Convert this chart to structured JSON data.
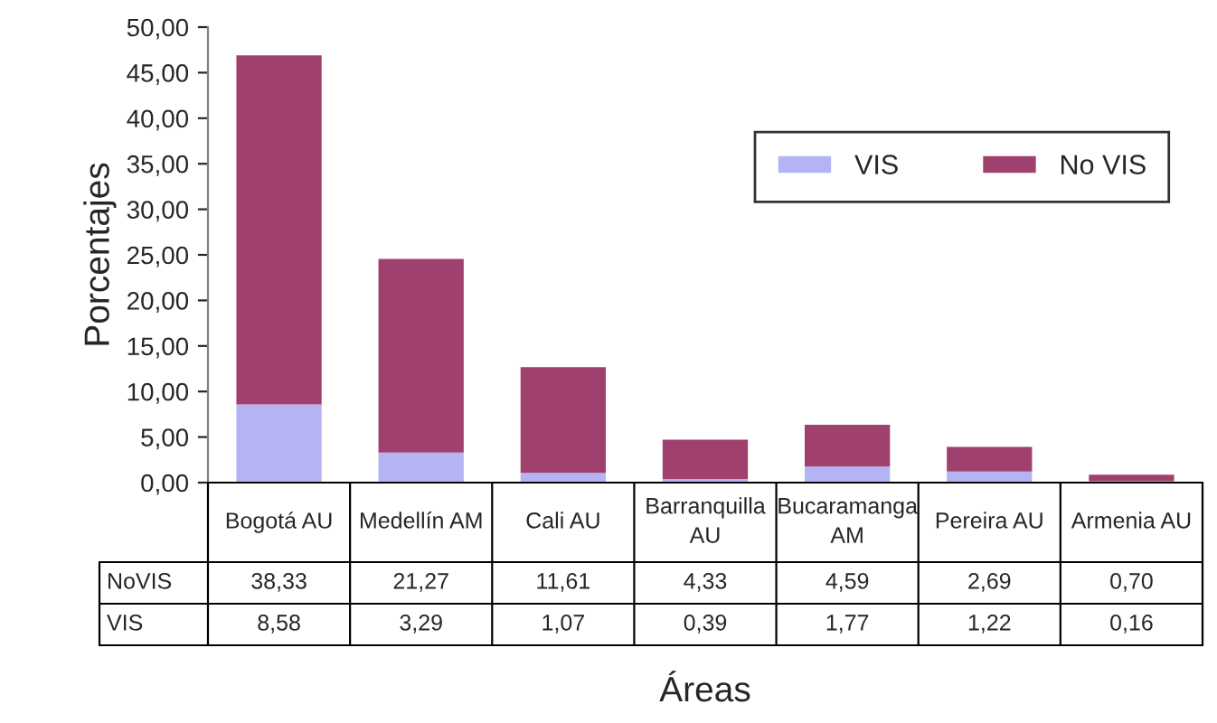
{
  "chart_data": {
    "type": "bar",
    "stacked": true,
    "xlabel": "Áreas",
    "ylabel": "Porcentajes",
    "categories": [
      "Bogotá AU",
      "Medellín AM",
      "Cali AU",
      "Barranquilla AU",
      "Bucaramanga AM",
      "Pereira AU",
      "Armenia AU"
    ],
    "series": [
      {
        "name": "VIS",
        "color": "#b4b4f4",
        "values": [
          8.58,
          3.29,
          1.07,
          0.39,
          1.77,
          1.22,
          0.16
        ],
        "value_labels": [
          "8,58",
          "3,29",
          "1,07",
          "0,39",
          "1,77",
          "1,22",
          "0,16"
        ]
      },
      {
        "name": "No VIS",
        "color": "#a0406e",
        "values": [
          38.33,
          21.27,
          11.61,
          4.33,
          4.59,
          2.69,
          0.7
        ],
        "value_labels": [
          "38,33",
          "21,27",
          "11,61",
          "4,33",
          "4,59",
          "2,69",
          "0,70"
        ]
      }
    ],
    "ylim": [
      0,
      50
    ],
    "yticks": [
      {
        "value": 0,
        "label": "0,00"
      },
      {
        "value": 5,
        "label": "5,00"
      },
      {
        "value": 10,
        "label": "10,00"
      },
      {
        "value": 15,
        "label": "15,00"
      },
      {
        "value": 20,
        "label": "20,00"
      },
      {
        "value": 25,
        "label": "25,00"
      },
      {
        "value": 30,
        "label": "30,00"
      },
      {
        "value": 35,
        "label": "35,00"
      },
      {
        "value": 40,
        "label": "40,00"
      },
      {
        "value": 45,
        "label": "45,00"
      },
      {
        "value": 50,
        "label": "50,00"
      }
    ],
    "annotations": [
      "NoVIS",
      "VIS"
    ],
    "legend": "top right",
    "grid": false
  }
}
